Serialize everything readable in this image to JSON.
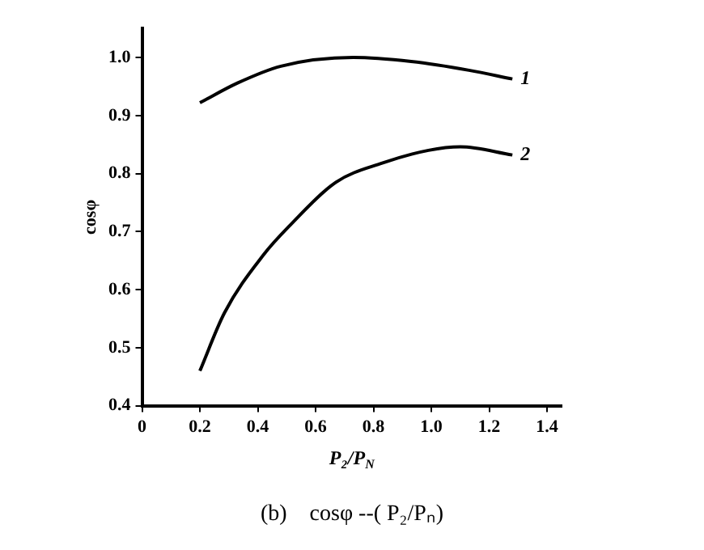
{
  "chart_data": {
    "type": "line",
    "xlabel": "P₂/P$_{N}$",
    "ylabel": "cosφ",
    "xlim": [
      0,
      1.45
    ],
    "ylim": [
      0.4,
      1.05
    ],
    "xticks": [
      0,
      0.2,
      0.4,
      0.6,
      0.8,
      {
        "value": 1,
        "label": "1.0"
      },
      1.2,
      1.4
    ],
    "yticks": [
      0.4,
      0.5,
      0.6,
      0.7,
      0.8,
      0.9,
      {
        "value": 1,
        "label": "1.0"
      }
    ],
    "grid": false,
    "legend": false,
    "marker": "none",
    "line_style": "solid",
    "series": [
      {
        "name": "1",
        "color": "#000000",
        "x": [
          0.2,
          0.33,
          0.48,
          0.73,
          0.93,
          1.13,
          1.28
        ],
        "values": [
          0.922,
          0.956,
          0.985,
          1.0,
          0.993,
          0.978,
          0.963
        ]
      },
      {
        "name": "2",
        "color": "#000000",
        "x": [
          0.2,
          0.285,
          0.42,
          0.51,
          0.67,
          0.83,
          0.99,
          1.1,
          1.28
        ],
        "values": [
          0.46,
          0.56,
          0.66,
          0.71,
          0.785,
          0.818,
          0.84,
          0.846,
          0.832
        ]
      }
    ],
    "annotations": [
      "(b)    cosφ --( P₂/Pₙ)"
    ]
  }
}
